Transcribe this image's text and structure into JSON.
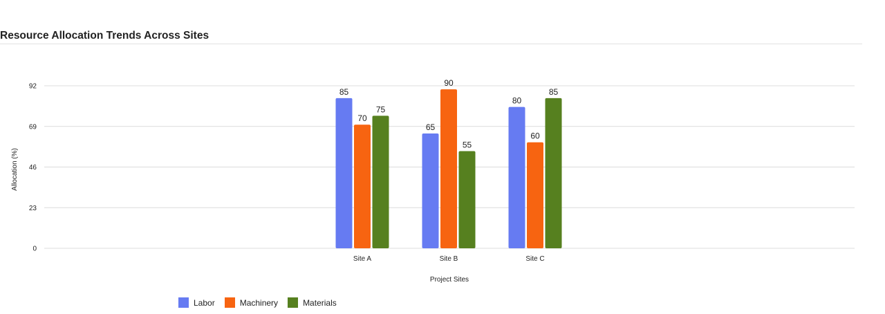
{
  "chart_data": {
    "type": "bar",
    "title": "Resource Allocation Trends Across Sites",
    "xlabel": "Project Sites",
    "ylabel": "Allocation (%)",
    "categories": [
      "Site A",
      "Site B",
      "Site C"
    ],
    "series": [
      {
        "name": "Labor",
        "color": "#667bf2",
        "values": [
          85,
          65,
          80
        ]
      },
      {
        "name": "Machinery",
        "color": "#f76411",
        "values": [
          70,
          90,
          60
        ]
      },
      {
        "name": "Materials",
        "color": "#56801f",
        "values": [
          75,
          55,
          85
        ]
      }
    ],
    "ylim": [
      0,
      92
    ],
    "yticks": [
      "0",
      "23",
      "46",
      "69",
      "92"
    ],
    "grid": true,
    "legend_position": "bottom-left",
    "data_labels": true
  }
}
